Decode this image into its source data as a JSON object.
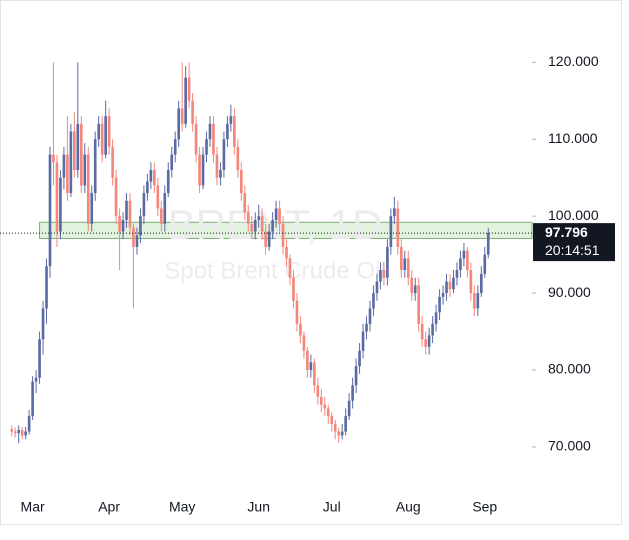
{
  "chart_data": {
    "type": "candlestick",
    "watermark_title": "BRENT, 1D",
    "watermark_subtitle": "Spot Brent Crude Oil",
    "countdown": "20:14:51",
    "up_color": "#5b6aa3",
    "down_color": "#f4877b",
    "zone": {
      "from_index": 8,
      "low": 97.1,
      "high": 99.2,
      "color": "#d8efd2"
    },
    "ylim": [
      64.4,
      128.1
    ],
    "yticks": [
      {
        "value": 70,
        "label": "70.000"
      },
      {
        "value": 80,
        "label": "80.000"
      },
      {
        "value": 90,
        "label": "90.000"
      },
      {
        "value": 100,
        "label": "100.000"
      },
      {
        "value": 110,
        "label": "110.000"
      },
      {
        "value": 120,
        "label": "120.000"
      }
    ],
    "categories": [
      null,
      null,
      null,
      null,
      null,
      null,
      "Mar",
      null,
      null,
      null,
      null,
      null,
      null,
      null,
      null,
      null,
      null,
      null,
      null,
      null,
      null,
      null,
      null,
      null,
      null,
      null,
      null,
      null,
      "Apr",
      null,
      null,
      null,
      null,
      null,
      null,
      null,
      null,
      null,
      null,
      null,
      null,
      null,
      null,
      null,
      null,
      null,
      null,
      null,
      null,
      "May",
      null,
      null,
      null,
      null,
      null,
      null,
      null,
      null,
      null,
      null,
      null,
      null,
      null,
      null,
      null,
      null,
      null,
      null,
      null,
      null,
      null,
      "Jun",
      null,
      null,
      null,
      null,
      null,
      null,
      null,
      null,
      null,
      null,
      null,
      null,
      null,
      null,
      null,
      null,
      null,
      null,
      null,
      null,
      "Jul",
      null,
      null,
      null,
      null,
      null,
      null,
      null,
      null,
      null,
      null,
      null,
      null,
      null,
      null,
      null,
      null,
      null,
      null,
      null,
      null,
      null,
      "Aug",
      null,
      null,
      null,
      null,
      null,
      null,
      null,
      null,
      null,
      null,
      null,
      null,
      null,
      null,
      null,
      null,
      null,
      null,
      null,
      null,
      null,
      "Sep",
      null
    ],
    "ohlc": [
      [
        72.3,
        72.8,
        71.4,
        72.0
      ],
      [
        72.0,
        72.5,
        71.2,
        71.8
      ],
      [
        71.8,
        72.8,
        70.5,
        72.2
      ],
      [
        72.2,
        72.6,
        71.0,
        71.5
      ],
      [
        71.5,
        72.6,
        71.0,
        72.0
      ],
      [
        72.0,
        74.8,
        71.6,
        74.0
      ],
      [
        74.0,
        79.2,
        73.5,
        78.5
      ],
      [
        78.5,
        80.0,
        77.0,
        79.0
      ],
      [
        79.0,
        85.0,
        78.2,
        84.0
      ],
      [
        84.0,
        89.0,
        82.0,
        88.0
      ],
      [
        88.0,
        94.5,
        86.0,
        93.5
      ],
      [
        93.5,
        109.0,
        92.0,
        108.0
      ],
      [
        108.0,
        120.0,
        104.0,
        107.0
      ],
      [
        107.0,
        108.0,
        96.0,
        98.0
      ],
      [
        98.0,
        106.0,
        97.0,
        105.0
      ],
      [
        105.0,
        109.0,
        103.5,
        108.0
      ],
      [
        108.0,
        113.0,
        102.0,
        103.0
      ],
      [
        103.0,
        112.0,
        102.5,
        111.0
      ],
      [
        111.0,
        113.5,
        105.0,
        106.0
      ],
      [
        106.0,
        120.0,
        105.0,
        112.0
      ],
      [
        112.0,
        113.0,
        103.0,
        104.0
      ],
      [
        104.0,
        109.5,
        103.0,
        108.0
      ],
      [
        108.0,
        109.0,
        98.0,
        99.0
      ],
      [
        99.0,
        104.0,
        98.0,
        103.0
      ],
      [
        103.0,
        111.0,
        102.0,
        110.0
      ],
      [
        110.0,
        113.0,
        109.0,
        112.0
      ],
      [
        112.0,
        113.0,
        107.0,
        108.0
      ],
      [
        108.0,
        115.0,
        107.5,
        113.0
      ],
      [
        113.0,
        114.0,
        108.0,
        109.0
      ],
      [
        109.0,
        110.0,
        104.0,
        105.0
      ],
      [
        105.0,
        106.0,
        99.0,
        100.0
      ],
      [
        100.0,
        101.0,
        93.0,
        98.0
      ],
      [
        98.0,
        100.5,
        97.0,
        99.5
      ],
      [
        99.5,
        103.0,
        98.5,
        102.0
      ],
      [
        102.0,
        103.0,
        97.5,
        98.5
      ],
      [
        98.5,
        99.0,
        88.0,
        96.0
      ],
      [
        96.0,
        98.5,
        95.0,
        97.5
      ],
      [
        97.5,
        101.0,
        96.5,
        100.0
      ],
      [
        100.0,
        104.0,
        99.0,
        103.0
      ],
      [
        103.0,
        105.5,
        102.0,
        104.5
      ],
      [
        104.5,
        107.0,
        103.5,
        106.0
      ],
      [
        106.0,
        107.0,
        103.0,
        104.0
      ],
      [
        104.0,
        105.0,
        100.0,
        101.0
      ],
      [
        101.0,
        102.0,
        98.0,
        99.0
      ],
      [
        99.0,
        104.0,
        98.0,
        103.0
      ],
      [
        103.0,
        107.0,
        102.5,
        106.0
      ],
      [
        106.0,
        109.0,
        105.0,
        108.0
      ],
      [
        108.0,
        111.0,
        107.0,
        110.0
      ],
      [
        110.0,
        115.0,
        109.0,
        114.0
      ],
      [
        114.0,
        120.0,
        111.0,
        112.0
      ],
      [
        112.0,
        119.5,
        111.5,
        118.0
      ],
      [
        118.0,
        120.0,
        114.0,
        115.0
      ],
      [
        115.0,
        116.0,
        111.0,
        112.0
      ],
      [
        112.0,
        113.0,
        107.0,
        108.0
      ],
      [
        108.0,
        109.0,
        103.0,
        104.0
      ],
      [
        104.0,
        109.0,
        103.5,
        108.0
      ],
      [
        108.0,
        111.0,
        107.0,
        110.0
      ],
      [
        110.0,
        113.0,
        109.0,
        112.0
      ],
      [
        112.0,
        113.0,
        107.0,
        108.0
      ],
      [
        108.0,
        109.0,
        104.0,
        105.0
      ],
      [
        105.0,
        107.0,
        104.0,
        106.0
      ],
      [
        106.0,
        111.0,
        105.0,
        110.0
      ],
      [
        110.0,
        113.0,
        109.0,
        112.0
      ],
      [
        112.0,
        114.5,
        111.0,
        113.0
      ],
      [
        113.0,
        114.0,
        108.0,
        109.0
      ],
      [
        109.0,
        110.0,
        105.0,
        106.0
      ],
      [
        106.0,
        107.0,
        102.0,
        103.0
      ],
      [
        103.0,
        104.0,
        99.5,
        100.5
      ],
      [
        100.5,
        101.5,
        98.0,
        99.0
      ],
      [
        99.0,
        100.0,
        97.0,
        98.0
      ],
      [
        98.0,
        100.5,
        97.0,
        99.5
      ],
      [
        99.5,
        101.5,
        98.5,
        100.0
      ],
      [
        100.0,
        101.0,
        97.0,
        98.0
      ],
      [
        98.0,
        99.0,
        95.0,
        96.0
      ],
      [
        96.0,
        99.0,
        95.5,
        98.0
      ],
      [
        98.0,
        100.5,
        97.0,
        99.5
      ],
      [
        99.5,
        102.0,
        98.5,
        101.0
      ],
      [
        101.0,
        102.0,
        98.0,
        99.0
      ],
      [
        99.0,
        100.0,
        95.0,
        96.0
      ],
      [
        96.0,
        97.0,
        93.5,
        94.5
      ],
      [
        94.5,
        95.0,
        91.0,
        92.0
      ],
      [
        92.0,
        93.0,
        88.0,
        89.0
      ],
      [
        89.0,
        90.0,
        85.0,
        86.0
      ],
      [
        86.0,
        87.0,
        83.5,
        84.5
      ],
      [
        84.5,
        85.0,
        81.5,
        82.5
      ],
      [
        82.5,
        83.0,
        79.0,
        80.0
      ],
      [
        80.0,
        82.0,
        79.0,
        81.0
      ],
      [
        81.0,
        81.5,
        77.0,
        78.0
      ],
      [
        78.0,
        79.0,
        75.5,
        76.5
      ],
      [
        76.5,
        77.5,
        74.5,
        75.5
      ],
      [
        75.5,
        76.5,
        74.0,
        75.0
      ],
      [
        75.0,
        75.5,
        73.0,
        74.0
      ],
      [
        74.0,
        74.5,
        72.0,
        73.0
      ],
      [
        73.0,
        73.5,
        71.0,
        72.0
      ],
      [
        72.0,
        72.5,
        70.5,
        71.5
      ],
      [
        71.5,
        73.0,
        71.0,
        72.0
      ],
      [
        72.0,
        75.0,
        71.5,
        74.0
      ],
      [
        74.0,
        77.0,
        73.5,
        76.0
      ],
      [
        76.0,
        79.0,
        75.0,
        78.0
      ],
      [
        78.0,
        81.5,
        77.0,
        80.5
      ],
      [
        80.5,
        83.5,
        79.5,
        82.5
      ],
      [
        82.5,
        86.0,
        81.5,
        85.0
      ],
      [
        85.0,
        87.0,
        84.0,
        86.0
      ],
      [
        86.0,
        89.0,
        85.0,
        88.0
      ],
      [
        88.0,
        91.0,
        87.0,
        90.0
      ],
      [
        90.0,
        92.5,
        89.0,
        91.5
      ],
      [
        91.5,
        94.0,
        90.5,
        93.0
      ],
      [
        93.0,
        94.0,
        91.0,
        92.0
      ],
      [
        92.0,
        97.0,
        91.0,
        96.0
      ],
      [
        96.0,
        101.0,
        95.0,
        100.0
      ],
      [
        100.0,
        102.5,
        99.0,
        101.0
      ],
      [
        101.0,
        102.0,
        95.0,
        96.0
      ],
      [
        96.0,
        97.0,
        92.0,
        93.0
      ],
      [
        93.0,
        95.5,
        92.0,
        94.5
      ],
      [
        94.5,
        95.5,
        91.0,
        92.0
      ],
      [
        92.0,
        93.0,
        89.0,
        90.0
      ],
      [
        90.0,
        92.0,
        89.0,
        91.0
      ],
      [
        91.0,
        92.0,
        85.0,
        86.0
      ],
      [
        86.0,
        87.0,
        83.0,
        84.0
      ],
      [
        84.0,
        85.0,
        82.0,
        83.0
      ],
      [
        83.0,
        85.5,
        82.0,
        84.5
      ],
      [
        84.5,
        87.0,
        83.5,
        86.0
      ],
      [
        86.0,
        88.5,
        85.0,
        87.5
      ],
      [
        87.5,
        90.5,
        86.5,
        89.5
      ],
      [
        89.5,
        91.0,
        88.5,
        90.0
      ],
      [
        90.0,
        92.5,
        89.0,
        91.5
      ],
      [
        91.5,
        92.5,
        89.5,
        90.5
      ],
      [
        90.5,
        93.0,
        90.0,
        92.0
      ],
      [
        92.0,
        94.0,
        91.0,
        93.0
      ],
      [
        93.0,
        95.5,
        92.0,
        94.5
      ],
      [
        94.5,
        96.5,
        93.5,
        95.5
      ],
      [
        95.5,
        96.0,
        92.0,
        93.0
      ],
      [
        93.0,
        94.0,
        89.0,
        90.0
      ],
      [
        90.0,
        91.0,
        87.0,
        88.0
      ],
      [
        88.0,
        91.0,
        87.0,
        90.0
      ],
      [
        90.0,
        93.5,
        89.5,
        92.5
      ],
      [
        92.5,
        96.0,
        92.0,
        95.0
      ],
      [
        95.0,
        98.5,
        94.5,
        97.796
      ]
    ]
  }
}
